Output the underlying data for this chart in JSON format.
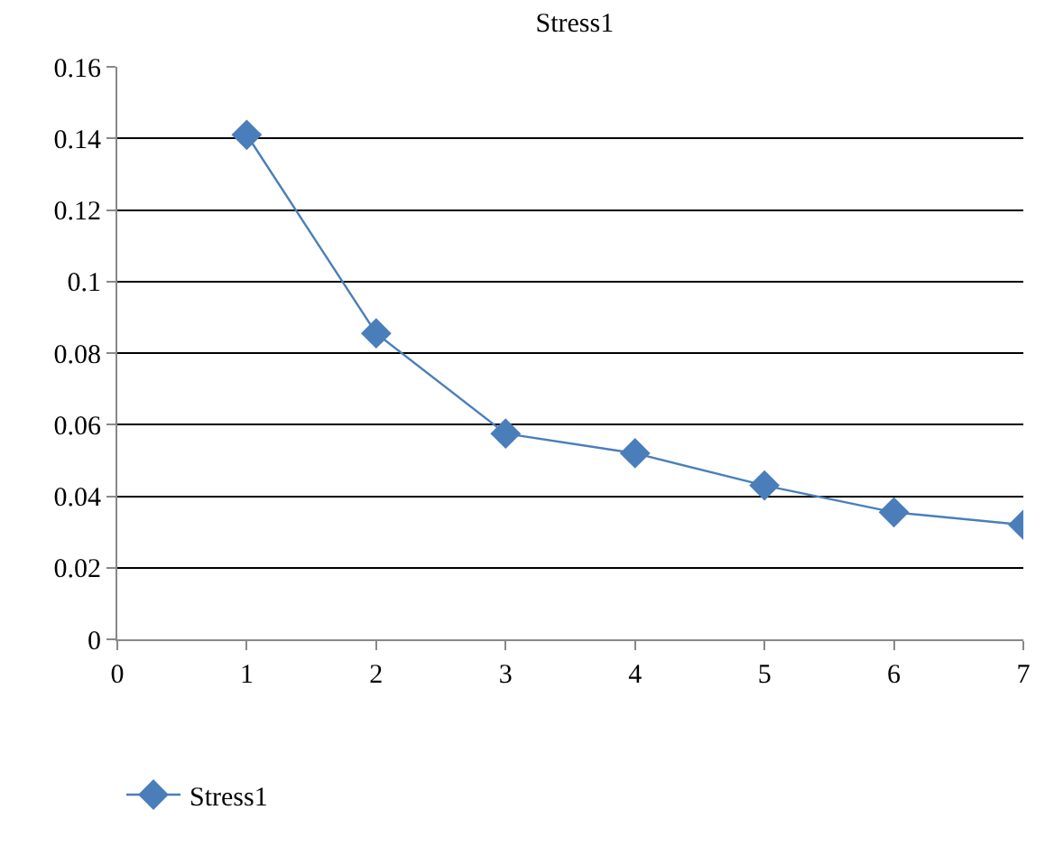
{
  "chart_data": {
    "type": "line",
    "title": "Stress1",
    "x": [
      1,
      2,
      3,
      4,
      5,
      6,
      7
    ],
    "series": [
      {
        "name": "Stress1",
        "color": "#4a7ebb",
        "values": [
          0.141,
          0.0855,
          0.0575,
          0.052,
          0.043,
          0.0355,
          0.032
        ]
      }
    ],
    "xlim": [
      0,
      7
    ],
    "xticks": [
      0,
      1,
      2,
      3,
      4,
      5,
      6,
      7
    ],
    "ylim": [
      0,
      0.16
    ],
    "yticks": [
      0,
      0.02,
      0.04,
      0.06,
      0.08,
      0.1,
      0.12,
      0.14,
      0.16
    ],
    "grid": "y",
    "legend": "bottom left",
    "marker": "diamond",
    "line_style": "solid"
  }
}
